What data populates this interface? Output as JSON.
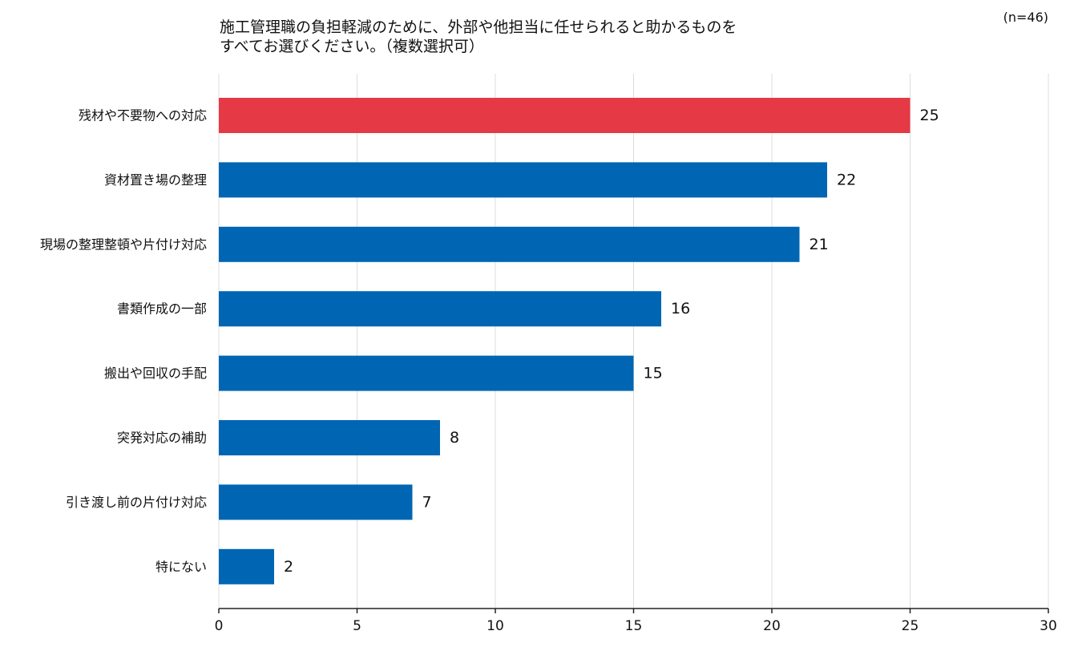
{
  "title_lines": [
    "施工管理職の負担軽減のために、外部や他担当に任せられると助かるものを",
    "すべてお選びください。（複数選択可）"
  ],
  "n_label": "(n=46)",
  "colors": {
    "highlight": "#e63946",
    "bar": "#0066b3",
    "grid": "#dddddd",
    "axis": "#222222"
  },
  "chart_data": {
    "type": "bar",
    "orientation": "horizontal",
    "categories": [
      "残材や不要物への対応",
      "資材置き場の整理",
      "現場の整理整頓や片付け対応",
      "書類作成の一部",
      "搬出や回収の手配",
      "突発対応の補助",
      "引き渡し前の片付け対応",
      "特にない"
    ],
    "values": [
      25,
      22,
      21,
      16,
      15,
      8,
      7,
      2
    ],
    "highlight_index": 0,
    "xlim": [
      0,
      30
    ],
    "xticks": [
      0,
      5,
      10,
      15,
      20,
      25,
      30
    ],
    "grid": true
  }
}
